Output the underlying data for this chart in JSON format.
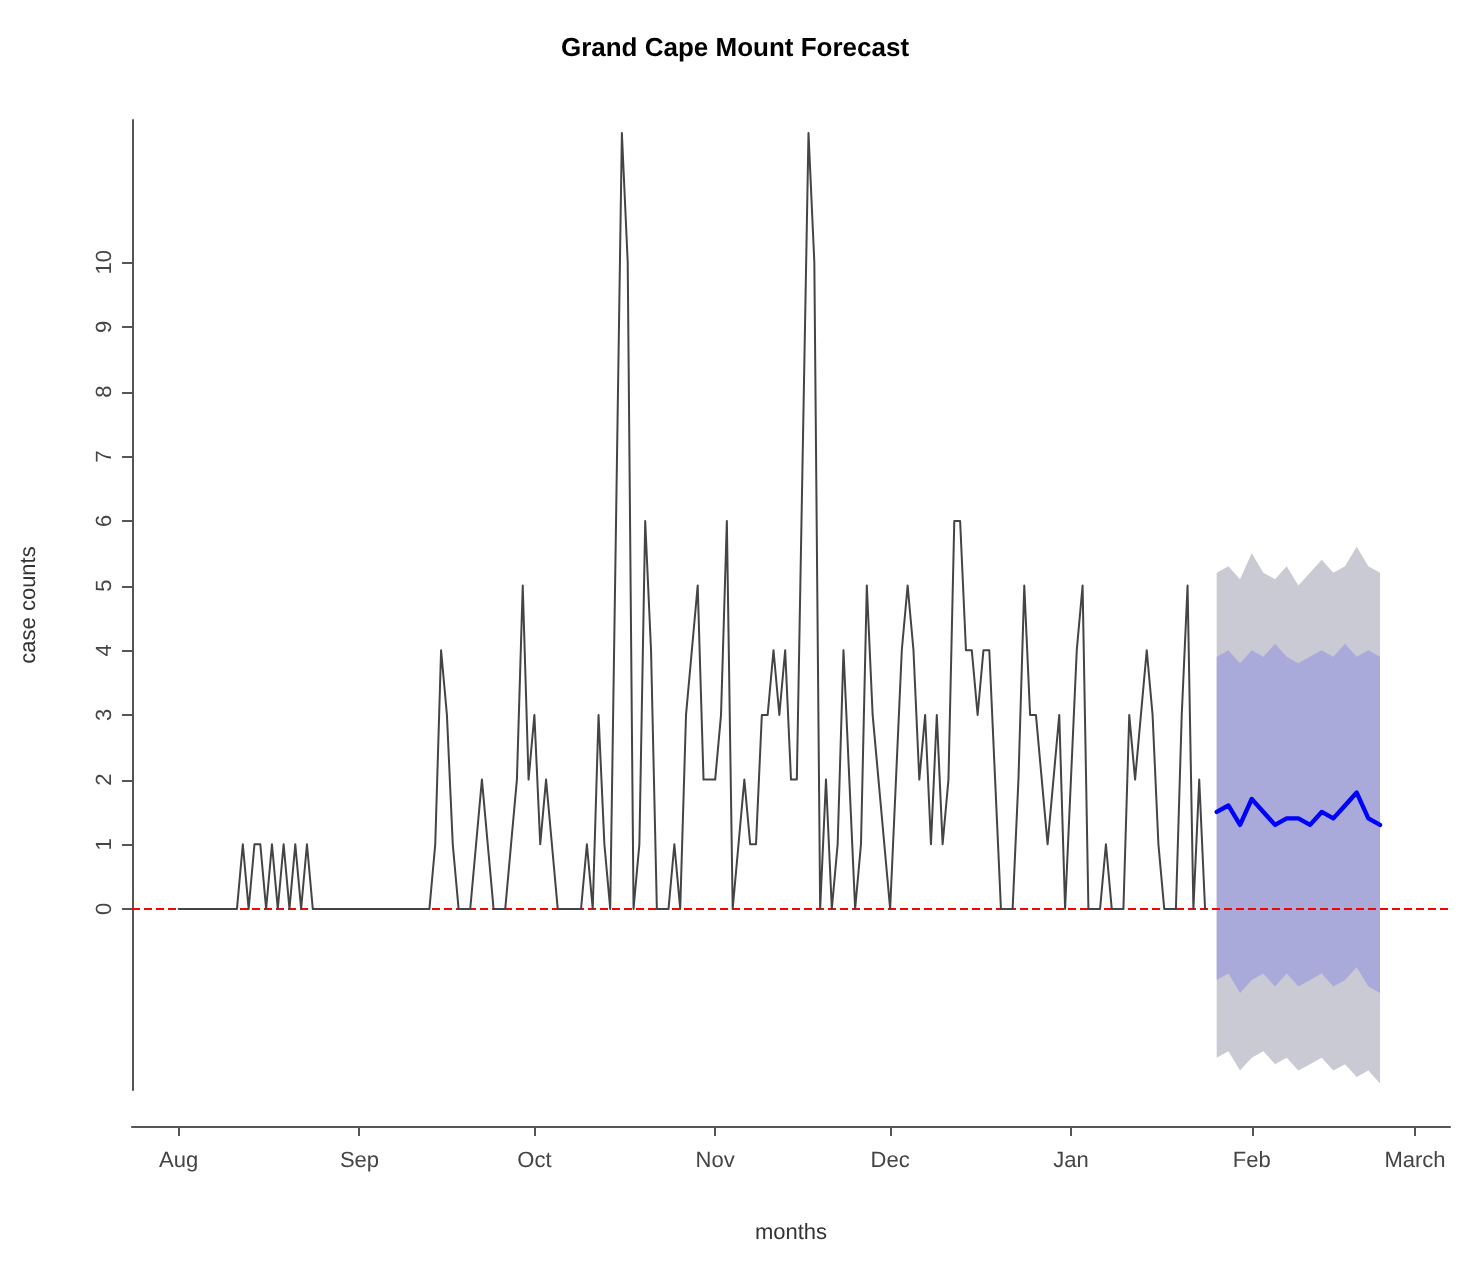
{
  "chart_data": {
    "type": "line",
    "title": "Grand Cape Mount Forecast",
    "xlabel": "months",
    "ylabel": "case counts",
    "categories": [
      null,
      null,
      null,
      null,
      null,
      null,
      null,
      null,
      "Aug",
      null,
      null,
      null,
      null,
      null,
      null,
      null,
      null,
      null,
      null,
      null,
      null,
      null,
      null,
      null,
      null,
      null,
      null,
      null,
      null,
      null,
      null,
      null,
      null,
      null,
      null,
      null,
      null,
      null,
      null,
      "Sep",
      null,
      null,
      null,
      null,
      null,
      null,
      null,
      null,
      null,
      null,
      null,
      null,
      null,
      null,
      null,
      null,
      null,
      null,
      null,
      null,
      null,
      null,
      null,
      null,
      null,
      null,
      null,
      null,
      null,
      "Oct",
      null,
      null,
      null,
      null,
      null,
      null,
      null,
      null,
      null,
      null,
      null,
      null,
      null,
      null,
      null,
      null,
      null,
      null,
      null,
      null,
      null,
      null,
      null,
      null,
      null,
      null,
      null,
      null,
      null,
      null,
      "Nov",
      null,
      null,
      null,
      null,
      null,
      null,
      null,
      null,
      null,
      null,
      null,
      null,
      null,
      null,
      null,
      null,
      null,
      null,
      null,
      null,
      null,
      null,
      null,
      null,
      null,
      null,
      null,
      null,
      null,
      "Dec",
      null,
      null,
      null,
      null,
      null,
      null,
      null,
      null,
      null,
      null,
      null,
      null,
      null,
      null,
      null,
      null,
      null,
      null,
      null,
      null,
      null,
      null,
      null,
      null,
      null,
      null,
      null,
      null,
      null,
      null,
      "Jan",
      null,
      null,
      null,
      null,
      null,
      null,
      null,
      null,
      null,
      null,
      null,
      null,
      null,
      null,
      null,
      null,
      null,
      null,
      null,
      null,
      null,
      null,
      null,
      null,
      null,
      null,
      null,
      null,
      null,
      null,
      "Feb",
      null,
      null,
      null,
      null,
      null,
      null,
      null,
      null,
      null,
      null,
      null,
      null,
      null,
      null,
      null,
      null,
      null,
      null,
      null,
      null,
      null,
      null,
      null,
      null,
      null,
      null,
      null,
      "March",
      null,
      null,
      null,
      null,
      null,
      null
    ],
    "ylim": [
      -2.8,
      12.2
    ],
    "yticks": [
      0,
      1,
      2,
      3,
      4,
      5,
      6,
      7,
      8,
      9,
      10
    ],
    "grid": false,
    "legend": false,
    "line_style": "solid",
    "ref_lines": [
      {
        "axis": "y",
        "value": 0,
        "color": "#ff0000",
        "line_style": "dashed"
      }
    ],
    "series": [
      {
        "color": "#444444",
        "values": [
          null,
          null,
          null,
          null,
          null,
          null,
          null,
          null,
          0,
          0,
          0,
          0,
          0,
          0,
          0,
          0,
          0,
          0,
          0,
          1,
          0,
          1,
          1,
          0,
          1,
          0,
          1,
          0,
          1,
          0,
          1,
          0,
          0,
          0,
          0,
          0,
          0,
          0,
          0,
          0,
          0,
          0,
          0,
          0,
          0,
          0,
          0,
          0,
          0,
          0,
          0,
          0,
          1,
          4,
          3,
          1,
          0,
          0,
          0,
          1,
          2,
          1,
          0,
          0,
          0,
          1,
          2,
          5,
          2,
          3,
          1,
          2,
          1,
          0,
          0,
          0,
          0,
          0,
          1,
          0,
          3,
          1,
          0,
          6,
          12,
          10,
          0,
          1,
          6,
          4,
          0,
          0,
          0,
          1,
          0,
          3,
          4,
          5,
          2,
          2,
          2,
          3,
          6,
          0,
          1,
          2,
          1,
          1,
          3,
          3,
          4,
          3,
          4,
          2,
          2,
          7,
          12,
          10,
          0,
          2,
          0,
          1,
          4,
          2,
          0,
          1,
          5,
          3,
          2,
          1,
          0,
          2,
          4,
          5,
          4,
          2,
          3,
          1,
          3,
          1,
          2,
          6,
          6,
          4,
          4,
          3,
          4,
          4,
          2,
          0,
          0,
          0,
          2,
          5,
          3,
          3,
          2,
          1,
          2,
          3,
          0,
          2,
          4,
          5,
          0,
          0,
          0,
          1,
          0,
          0,
          0,
          3,
          2,
          3,
          4,
          3,
          1,
          0,
          0,
          0,
          3,
          5,
          0,
          2,
          0,
          null,
          null,
          null,
          null,
          null,
          null,
          null,
          null,
          null,
          null,
          null,
          null,
          null,
          null,
          null,
          null,
          null,
          null,
          null,
          null,
          null,
          null,
          null,
          null,
          null,
          null,
          null,
          null,
          null,
          null,
          null,
          null,
          null,
          null,
          null,
          null,
          null,
          null,
          null,
          null,
          null,
          null
        ]
      },
      {
        "color": "#d3d4dd",
        "values": [
          null,
          null,
          null,
          null,
          null,
          null,
          null,
          null,
          null,
          null,
          null,
          null,
          null,
          null,
          null,
          null,
          null,
          null,
          null,
          null,
          null,
          null,
          null,
          null,
          null,
          null,
          null,
          null,
          null,
          null,
          null,
          null,
          null,
          null,
          null,
          null,
          null,
          null,
          null,
          null,
          null,
          null,
          null,
          null,
          null,
          null,
          null,
          null,
          null,
          null,
          null,
          null,
          null,
          null,
          null,
          null,
          null,
          null,
          null,
          null,
          null,
          null,
          null,
          null,
          null,
          null,
          null,
          null,
          null,
          null,
          null,
          null,
          null,
          null,
          null,
          null,
          null,
          null,
          null,
          null,
          null,
          null,
          null,
          null,
          null,
          null,
          null,
          null,
          null,
          null,
          null,
          null,
          null,
          null,
          null,
          null,
          null,
          null,
          null,
          null,
          null,
          null,
          null,
          null,
          null,
          null,
          null,
          null,
          null,
          null,
          null,
          null,
          null,
          null,
          null,
          null,
          null,
          null,
          null,
          null,
          null,
          null,
          null,
          null,
          null,
          null,
          null,
          null,
          null,
          null,
          null,
          null,
          null,
          null,
          null,
          null,
          null,
          null,
          null,
          null,
          null,
          null,
          null,
          null,
          null,
          null,
          null,
          null,
          null,
          null,
          null,
          null,
          null,
          null,
          null,
          null,
          null,
          null,
          null,
          null,
          null,
          null,
          null,
          null,
          null,
          null,
          null,
          null,
          null,
          null,
          null,
          null,
          null,
          null,
          null,
          null,
          null,
          null,
          null,
          null,
          null,
          null,
          null,
          null,
          null,
          null,
          null,
          null,
          null,
          null,
          null,
          null,
          null,
          null,
          null,
          null,
          null,
          null,
          null,
          null,
          null,
          null,
          null,
          null,
          null,
          null,
          null,
          null,
          null,
          null,
          null,
          null,
          null,
          null,
          null,
          null,
          null,
          null,
          null,
          null,
          null,
          null,
          null,
          null,
          null,
          null,
          null
        ],
        "upper": [
          null,
          null,
          null,
          null,
          null,
          null,
          null,
          null,
          null,
          null,
          null,
          null,
          null,
          null,
          null,
          null,
          null,
          null,
          null,
          null,
          null,
          null,
          null,
          null,
          null,
          null,
          null,
          null,
          null,
          null,
          null,
          null,
          null,
          null,
          null,
          null,
          null,
          null,
          null,
          null,
          null,
          null,
          null,
          null,
          null,
          null,
          null,
          null,
          null,
          null,
          null,
          null,
          null,
          null,
          null,
          null,
          null,
          null,
          null,
          null,
          null,
          null,
          null,
          null,
          null,
          null,
          null,
          null,
          null,
          null,
          null,
          null,
          null,
          null,
          null,
          null,
          null,
          null,
          null,
          null,
          null,
          null,
          null,
          null,
          null,
          null,
          null,
          null,
          null,
          null,
          null,
          null,
          null,
          null,
          null,
          null,
          null,
          null,
          null,
          null,
          null,
          null,
          null,
          null,
          null,
          null,
          null,
          null,
          null,
          null,
          null,
          null,
          null,
          null,
          null,
          null,
          null,
          null,
          null,
          null,
          null,
          null,
          null,
          null,
          null,
          null,
          null,
          null,
          null,
          null,
          null,
          null,
          null,
          null,
          null,
          null,
          null,
          null,
          null,
          null,
          null,
          null,
          null,
          null,
          null,
          null,
          null,
          null,
          null,
          null,
          null,
          null,
          null,
          null,
          null,
          null,
          null,
          null,
          null,
          null,
          null,
          null,
          null,
          null,
          null,
          null,
          null,
          null,
          null,
          null,
          null,
          null,
          null,
          null,
          null,
          null,
          null,
          null,
          null,
          null,
          null,
          null,
          null,
          null,
          null,
          null,
          5.2,
          null,
          5.3,
          null,
          5.1,
          null,
          5.5,
          null,
          5.2,
          null,
          5.1,
          null,
          5.3,
          null,
          5.0,
          null,
          5.2,
          null,
          5.4,
          null,
          5.2,
          null,
          5.3,
          null,
          5.6,
          null,
          5.3,
          null,
          5.2,
          null,
          null,
          null,
          null,
          null,
          null,
          null,
          null,
          null,
          null,
          null,
          null
        ],
        "lower": [
          null,
          null,
          null,
          null,
          null,
          null,
          null,
          null,
          null,
          null,
          null,
          null,
          null,
          null,
          null,
          null,
          null,
          null,
          null,
          null,
          null,
          null,
          null,
          null,
          null,
          null,
          null,
          null,
          null,
          null,
          null,
          null,
          null,
          null,
          null,
          null,
          null,
          null,
          null,
          null,
          null,
          null,
          null,
          null,
          null,
          null,
          null,
          null,
          null,
          null,
          null,
          null,
          null,
          null,
          null,
          null,
          null,
          null,
          null,
          null,
          null,
          null,
          null,
          null,
          null,
          null,
          null,
          null,
          null,
          null,
          null,
          null,
          null,
          null,
          null,
          null,
          null,
          null,
          null,
          null,
          null,
          null,
          null,
          null,
          null,
          null,
          null,
          null,
          null,
          null,
          null,
          null,
          null,
          null,
          null,
          null,
          null,
          null,
          null,
          null,
          null,
          null,
          null,
          null,
          null,
          null,
          null,
          null,
          null,
          null,
          null,
          null,
          null,
          null,
          null,
          null,
          null,
          null,
          null,
          null,
          null,
          null,
          null,
          null,
          null,
          null,
          null,
          null,
          null,
          null,
          null,
          null,
          null,
          null,
          null,
          null,
          null,
          null,
          null,
          null,
          null,
          null,
          null,
          null,
          null,
          null,
          null,
          null,
          null,
          null,
          null,
          null,
          null,
          null,
          null,
          null,
          null,
          null,
          null,
          null,
          null,
          null,
          null,
          null,
          null,
          null,
          null,
          null,
          null,
          null,
          null,
          null,
          null,
          null,
          null,
          null,
          null,
          null,
          null,
          null,
          null,
          null,
          null,
          null,
          null,
          null,
          -2.3,
          null,
          -2.2,
          null,
          -2.5,
          null,
          -2.3,
          null,
          -2.2,
          null,
          -2.4,
          null,
          -2.3,
          null,
          -2.5,
          null,
          -2.4,
          null,
          -2.3,
          null,
          -2.5,
          null,
          -2.4,
          null,
          -2.6,
          null,
          -2.5,
          null,
          -2.7,
          null,
          null,
          null,
          null,
          null,
          null,
          null,
          null,
          null,
          null,
          null,
          null
        ]
      },
      {
        "color": "#0000ff",
        "values": [
          null,
          null,
          null,
          null,
          null,
          null,
          null,
          null,
          null,
          null,
          null,
          null,
          null,
          null,
          null,
          null,
          null,
          null,
          null,
          null,
          null,
          null,
          null,
          null,
          null,
          null,
          null,
          null,
          null,
          null,
          null,
          null,
          null,
          null,
          null,
          null,
          null,
          null,
          null,
          null,
          null,
          null,
          null,
          null,
          null,
          null,
          null,
          null,
          null,
          null,
          null,
          null,
          null,
          null,
          null,
          null,
          null,
          null,
          null,
          null,
          null,
          null,
          null,
          null,
          null,
          null,
          null,
          null,
          null,
          null,
          null,
          null,
          null,
          null,
          null,
          null,
          null,
          null,
          null,
          null,
          null,
          null,
          null,
          null,
          null,
          null,
          null,
          null,
          null,
          null,
          null,
          null,
          null,
          null,
          null,
          null,
          null,
          null,
          null,
          null,
          null,
          null,
          null,
          null,
          null,
          null,
          null,
          null,
          null,
          null,
          null,
          null,
          null,
          null,
          null,
          null,
          null,
          null,
          null,
          null,
          null,
          null,
          null,
          null,
          null,
          null,
          null,
          null,
          null,
          null,
          null,
          null,
          null,
          null,
          null,
          null,
          null,
          null,
          null,
          null,
          null,
          null,
          null,
          null,
          null,
          null,
          null,
          null,
          null,
          null,
          null,
          null,
          null,
          null,
          null,
          null,
          null,
          null,
          null,
          null,
          null,
          null,
          null,
          null,
          null,
          null,
          null,
          null,
          null,
          null,
          null,
          null,
          null,
          null,
          null,
          null,
          null,
          null,
          null,
          null,
          null,
          null,
          null,
          null,
          null,
          null,
          1.5,
          null,
          1.6,
          null,
          1.3,
          null,
          1.7,
          null,
          1.5,
          null,
          1.3,
          null,
          1.4,
          null,
          1.4,
          null,
          1.3,
          null,
          1.5,
          null,
          1.4,
          null,
          1.6,
          null,
          1.8,
          null,
          1.4,
          null,
          1.3,
          null,
          null,
          null,
          null,
          null,
          null,
          null,
          null,
          null,
          null,
          null,
          null
        ],
        "upper": [
          null,
          null,
          null,
          null,
          null,
          null,
          null,
          null,
          null,
          null,
          null,
          null,
          null,
          null,
          null,
          null,
          null,
          null,
          null,
          null,
          null,
          null,
          null,
          null,
          null,
          null,
          null,
          null,
          null,
          null,
          null,
          null,
          null,
          null,
          null,
          null,
          null,
          null,
          null,
          null,
          null,
          null,
          null,
          null,
          null,
          null,
          null,
          null,
          null,
          null,
          null,
          null,
          null,
          null,
          null,
          null,
          null,
          null,
          null,
          null,
          null,
          null,
          null,
          null,
          null,
          null,
          null,
          null,
          null,
          null,
          null,
          null,
          null,
          null,
          null,
          null,
          null,
          null,
          null,
          null,
          null,
          null,
          null,
          null,
          null,
          null,
          null,
          null,
          null,
          null,
          null,
          null,
          null,
          null,
          null,
          null,
          null,
          null,
          null,
          null,
          null,
          null,
          null,
          null,
          null,
          null,
          null,
          null,
          null,
          null,
          null,
          null,
          null,
          null,
          null,
          null,
          null,
          null,
          null,
          null,
          null,
          null,
          null,
          null,
          null,
          null,
          null,
          null,
          null,
          null,
          null,
          null,
          null,
          null,
          null,
          null,
          null,
          null,
          null,
          null,
          null,
          null,
          null,
          null,
          null,
          null,
          null,
          null,
          null,
          null,
          null,
          null,
          null,
          null,
          null,
          null,
          null,
          null,
          null,
          null,
          null,
          null,
          null,
          null,
          null,
          null,
          null,
          null,
          null,
          null,
          null,
          null,
          null,
          null,
          null,
          null,
          null,
          null,
          null,
          null,
          null,
          null,
          null,
          null,
          null,
          null,
          3.9,
          null,
          4.0,
          null,
          3.8,
          null,
          4.0,
          null,
          3.9,
          null,
          4.1,
          null,
          3.9,
          null,
          3.8,
          null,
          3.9,
          null,
          4.0,
          null,
          3.9,
          null,
          4.1,
          null,
          3.9,
          null,
          4.0,
          null,
          3.9,
          null,
          null,
          null,
          null,
          null,
          null,
          null,
          null,
          null,
          null,
          null,
          null
        ],
        "lower": [
          null,
          null,
          null,
          null,
          null,
          null,
          null,
          null,
          null,
          null,
          null,
          null,
          null,
          null,
          null,
          null,
          null,
          null,
          null,
          null,
          null,
          null,
          null,
          null,
          null,
          null,
          null,
          null,
          null,
          null,
          null,
          null,
          null,
          null,
          null,
          null,
          null,
          null,
          null,
          null,
          null,
          null,
          null,
          null,
          null,
          null,
          null,
          null,
          null,
          null,
          null,
          null,
          null,
          null,
          null,
          null,
          null,
          null,
          null,
          null,
          null,
          null,
          null,
          null,
          null,
          null,
          null,
          null,
          null,
          null,
          null,
          null,
          null,
          null,
          null,
          null,
          null,
          null,
          null,
          null,
          null,
          null,
          null,
          null,
          null,
          null,
          null,
          null,
          null,
          null,
          null,
          null,
          null,
          null,
          null,
          null,
          null,
          null,
          null,
          null,
          null,
          null,
          null,
          null,
          null,
          null,
          null,
          null,
          null,
          null,
          null,
          null,
          null,
          null,
          null,
          null,
          null,
          null,
          null,
          null,
          null,
          null,
          null,
          null,
          null,
          null,
          null,
          null,
          null,
          null,
          null,
          null,
          null,
          null,
          null,
          null,
          null,
          null,
          null,
          null,
          null,
          null,
          null,
          null,
          null,
          null,
          null,
          null,
          null,
          null,
          null,
          null,
          null,
          null,
          null,
          null,
          null,
          null,
          null,
          null,
          null,
          null,
          null,
          null,
          null,
          null,
          null,
          null,
          null,
          null,
          null,
          null,
          null,
          null,
          null,
          null,
          null,
          null,
          null,
          null,
          null,
          null,
          null,
          null,
          null,
          null,
          -1.1,
          null,
          -1.0,
          null,
          -1.3,
          null,
          -1.1,
          null,
          -1.0,
          null,
          -1.2,
          null,
          -1.0,
          null,
          -1.2,
          null,
          -1.1,
          null,
          -1.0,
          null,
          -1.2,
          null,
          -1.1,
          null,
          -0.9,
          null,
          -1.2,
          null,
          -1.3,
          null,
          null,
          null,
          null,
          null,
          null,
          null,
          null,
          null,
          null,
          null,
          null
        ]
      }
    ]
  }
}
